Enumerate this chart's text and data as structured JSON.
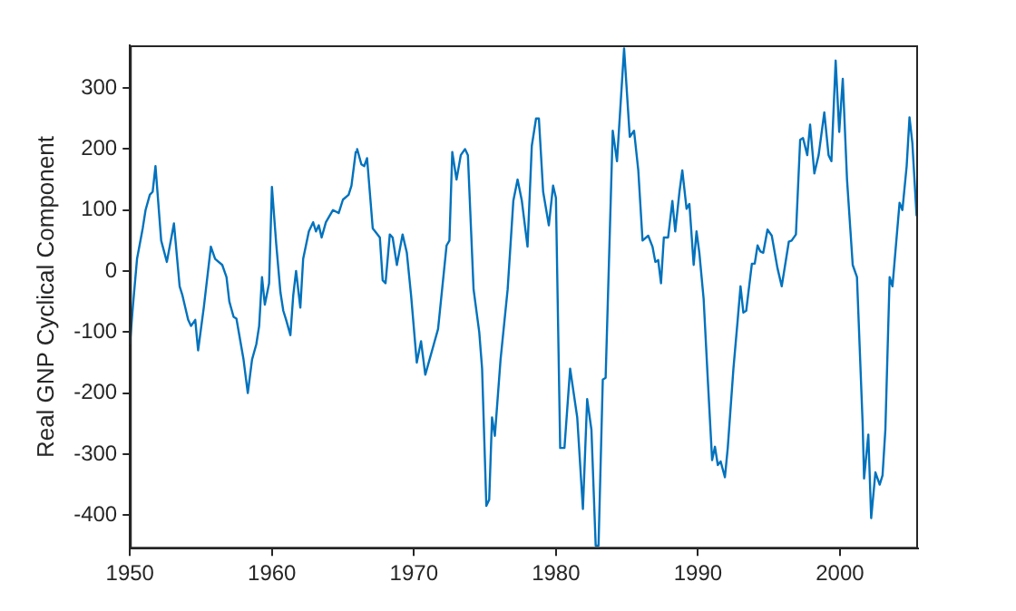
{
  "chart_data": {
    "type": "line",
    "ylabel": "Real GNP Cyclical Component",
    "xlim": [
      1950,
      2005.5
    ],
    "xticks": [
      1950,
      1960,
      1970,
      1980,
      1990,
      2000
    ],
    "ylim": [
      -455,
      370
    ],
    "yticks": [
      -400,
      -300,
      -200,
      -100,
      0,
      100,
      200,
      300
    ],
    "grid": false,
    "legend": false,
    "marker": "none",
    "line_style": "solid",
    "series": [
      {
        "color": "#0072bd",
        "x": [
          1950,
          1950.2,
          1950.5,
          1950.9,
          1951.1,
          1951.4,
          1951.6,
          1951.8,
          1952.2,
          1952.6,
          1953.1,
          1953.5,
          1953.7,
          1954.1,
          1954.3,
          1954.6,
          1954.8,
          1955.2,
          1955.7,
          1956.0,
          1956.5,
          1956.8,
          1957.0,
          1957.3,
          1957.5,
          1958.0,
          1958.3,
          1958.6,
          1958.9,
          1959.1,
          1959.3,
          1959.5,
          1959.8,
          1960.0,
          1960.3,
          1960.6,
          1960.8,
          1961.0,
          1961.3,
          1961.5,
          1961.7,
          1962.0,
          1962.2,
          1962.6,
          1962.9,
          1963.1,
          1963.3,
          1963.5,
          1963.8,
          1964.3,
          1964.7,
          1965.0,
          1965.4,
          1965.6,
          1965.9,
          1966.0,
          1966.3,
          1966.5,
          1966.7,
          1967.1,
          1967.6,
          1967.8,
          1968.0,
          1968.3,
          1968.5,
          1968.8,
          1969.2,
          1969.5,
          1969.8,
          1970.2,
          1970.5,
          1970.8,
          1971.1,
          1971.4,
          1971.7,
          1972.3,
          1972.5,
          1972.7,
          1973.0,
          1973.3,
          1973.6,
          1973.8,
          1974.2,
          1974.6,
          1974.8,
          1975.1,
          1975.3,
          1975.5,
          1975.7,
          1976.1,
          1976.6,
          1977.0,
          1977.3,
          1977.6,
          1978.0,
          1978.3,
          1978.6,
          1978.8,
          1979.1,
          1979.5,
          1979.8,
          1980.0,
          1980.3,
          1980.6,
          1981.0,
          1981.5,
          1981.9,
          1982.2,
          1982.5,
          1982.8,
          1983.0,
          1983.3,
          1983.5,
          1984.0,
          1984.3,
          1984.8,
          1985.2,
          1985.5,
          1985.8,
          1986.1,
          1986.5,
          1986.8,
          1987.0,
          1987.2,
          1987.4,
          1987.6,
          1987.9,
          1988.2,
          1988.4,
          1988.7,
          1988.9,
          1989.2,
          1989.4,
          1989.7,
          1989.9,
          1990.1,
          1990.4,
          1990.7,
          1991.0,
          1991.2,
          1991.4,
          1991.6,
          1991.9,
          1992.1,
          1992.5,
          1992.8,
          1993.0,
          1993.2,
          1993.4,
          1993.8,
          1994.0,
          1994.2,
          1994.4,
          1994.6,
          1994.9,
          1995.2,
          1995.6,
          1995.9,
          1996.4,
          1996.6,
          1996.9,
          1997.2,
          1997.4,
          1997.7,
          1997.9,
          1998.2,
          1998.5,
          1998.9,
          1999.2,
          1999.4,
          1999.7,
          1999.95,
          2000.2,
          2000.5,
          2000.9,
          2001.2,
          2001.6,
          2001.7,
          2002.0,
          2002.2,
          2002.5,
          2002.8,
          2003.0,
          2003.2,
          2003.5,
          2003.7,
          2003.9,
          2004.2,
          2004.4,
          2004.7,
          2004.9,
          2005.1,
          2005.4
        ],
        "values": [
          -120,
          -60,
          20,
          70,
          100,
          125,
          130,
          172,
          50,
          15,
          78,
          -25,
          -40,
          -80,
          -90,
          -80,
          -130,
          -60,
          40,
          20,
          10,
          -10,
          -50,
          -75,
          -78,
          -145,
          -200,
          -145,
          -120,
          -90,
          -10,
          -55,
          -20,
          138,
          45,
          -35,
          -65,
          -80,
          -105,
          -40,
          0,
          -60,
          20,
          65,
          80,
          65,
          75,
          55,
          80,
          100,
          95,
          117,
          125,
          140,
          195,
          200,
          175,
          172,
          185,
          70,
          55,
          -15,
          -20,
          60,
          55,
          10,
          60,
          30,
          -40,
          -150,
          -115,
          -170,
          -145,
          -120,
          -95,
          42,
          50,
          195,
          150,
          190,
          200,
          190,
          -30,
          -100,
          -160,
          -385,
          -375,
          -240,
          -270,
          -145,
          -30,
          115,
          150,
          115,
          40,
          205,
          250,
          250,
          130,
          75,
          140,
          120,
          -290,
          -290,
          -160,
          -240,
          -390,
          -210,
          -260,
          -450,
          -450,
          -178,
          -175,
          230,
          180,
          365,
          220,
          230,
          165,
          50,
          58,
          40,
          15,
          18,
          -20,
          55,
          55,
          115,
          65,
          130,
          165,
          102,
          110,
          10,
          65,
          30,
          -45,
          -180,
          -310,
          -288,
          -318,
          -312,
          -338,
          -290,
          -160,
          -80,
          -25,
          -68,
          -65,
          12,
          12,
          42,
          32,
          30,
          68,
          58,
          5,
          -25,
          48,
          50,
          60,
          215,
          218,
          190,
          240,
          160,
          190,
          260,
          190,
          180,
          345,
          228,
          315,
          150,
          10,
          -10,
          -250,
          -340,
          -268,
          -405,
          -330,
          -350,
          -335,
          -260,
          -10,
          -25,
          30,
          112,
          100,
          172,
          252,
          210,
          90
        ]
      }
    ]
  }
}
